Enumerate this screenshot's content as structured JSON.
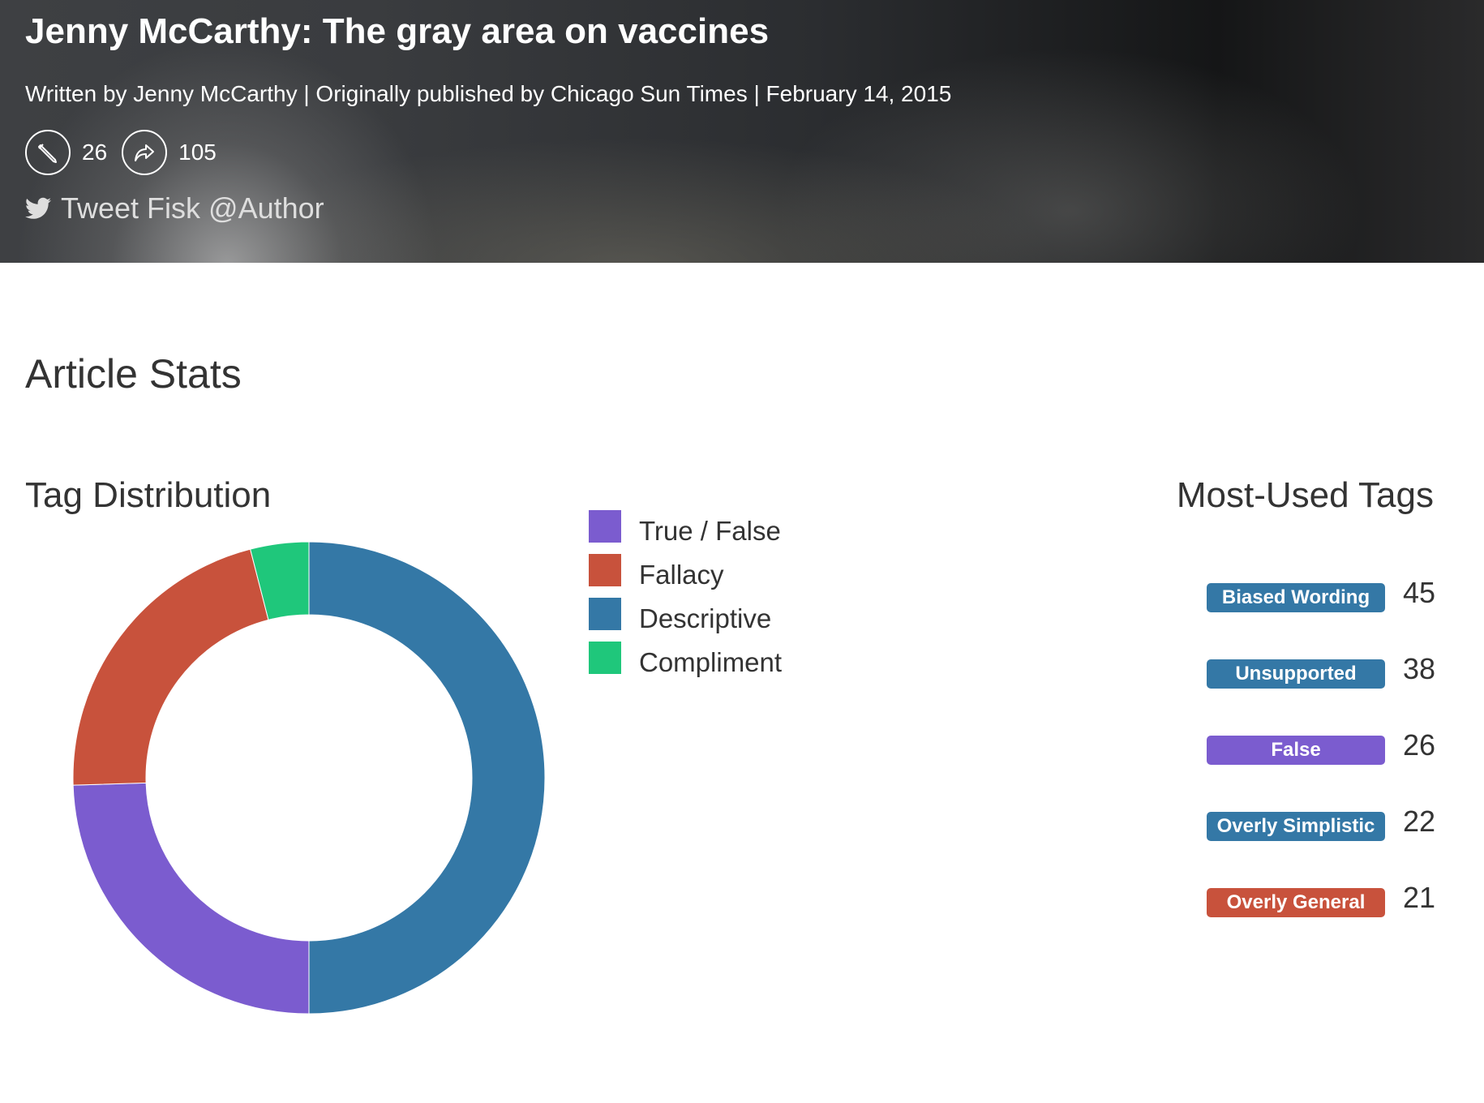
{
  "header": {
    "title": "Jenny McCarthy: The gray area on vaccines",
    "byline": "Written by Jenny McCarthy | Originally published by Chicago Sun Times | February 14, 2015",
    "edit_count": "26",
    "share_count": "105",
    "tweet_link": "Tweet Fisk @Author"
  },
  "stats": {
    "section_title": "Article Stats",
    "distribution_title": "Tag Distribution",
    "most_used_title": "Most-Used Tags"
  },
  "legend": [
    {
      "label": "True / False",
      "color": "#7b5ccf"
    },
    {
      "label": "Fallacy",
      "color": "#c8523c"
    },
    {
      "label": "Descriptive",
      "color": "#3478a6"
    },
    {
      "label": "Compliment",
      "color": "#1fc77b"
    }
  ],
  "chart_data": {
    "type": "pie",
    "variant": "donut",
    "series": [
      {
        "name": "Descriptive",
        "value": 50,
        "color": "#3478a6"
      },
      {
        "name": "True / False",
        "value": 24.5,
        "color": "#7b5ccf"
      },
      {
        "name": "Fallacy",
        "value": 21.5,
        "color": "#c8523c"
      },
      {
        "name": "Compliment",
        "value": 4,
        "color": "#1fc77b"
      }
    ],
    "unit": "percent",
    "start": "top, clockwise",
    "legend_placement": "right"
  },
  "most_used_tags": [
    {
      "label": "Biased Wording",
      "count": "45",
      "color": "#3478a6"
    },
    {
      "label": "Unsupported",
      "count": "38",
      "color": "#3478a6"
    },
    {
      "label": "False",
      "count": "26",
      "color": "#7b5ccf"
    },
    {
      "label": "Overly Simplistic",
      "count": "22",
      "color": "#3478a6"
    },
    {
      "label": "Overly General",
      "count": "21",
      "color": "#c8523c"
    }
  ],
  "icons": {
    "edit": "pencil-icon",
    "share": "share-arrow-icon",
    "twitter": "twitter-bird-icon"
  }
}
